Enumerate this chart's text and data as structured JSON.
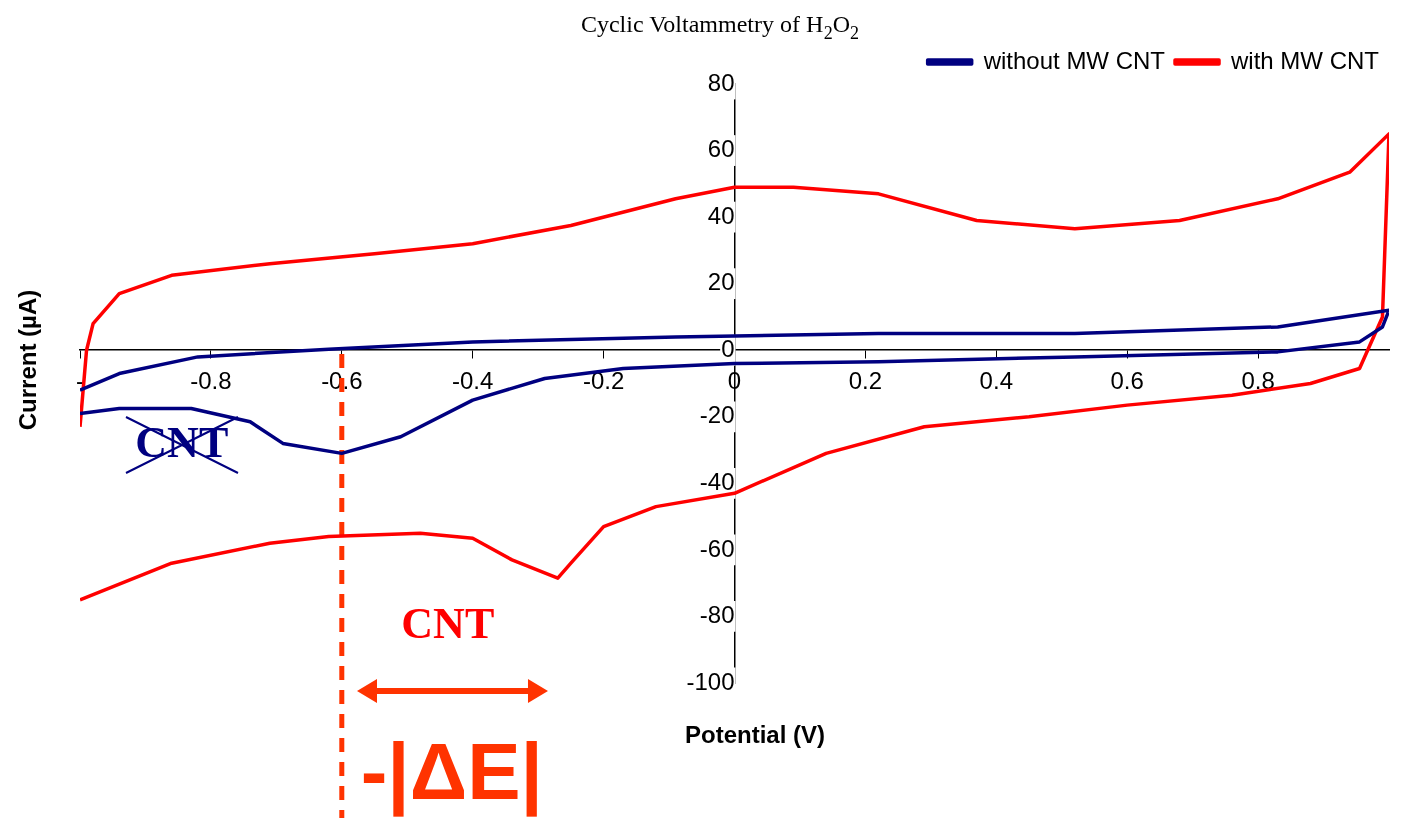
{
  "chart_data": {
    "type": "line",
    "title": "Cyclic Voltammetry of H$_{2}$O$_{2}$",
    "xlabel": "Potential (V)",
    "ylabel": "Current (µA)",
    "xlim": [
      -1,
      1
    ],
    "ylim": [
      -100,
      80
    ],
    "xticks": [
      {
        "value": -1,
        "label": "-"
      },
      -0.8,
      -0.6,
      -0.4,
      -0.2,
      0,
      0.2,
      0.4,
      0.6,
      0.8
    ],
    "yticks": [
      -100,
      -80,
      -60,
      -40,
      -20,
      0,
      20,
      40,
      60,
      80
    ],
    "grid": false,
    "legend": "top right",
    "line_style": "solid",
    "series": [
      {
        "name": "without MW CNT",
        "color": "#000080",
        "x": [
          -1,
          -0.94,
          -0.82,
          -0.62,
          -0.4,
          -0.09,
          0.22,
          0.52,
          0.83,
          1,
          0.99,
          0.955,
          0.83,
          0.52,
          0.22,
          0,
          -0.17,
          -0.29,
          -0.4,
          -0.51,
          -0.6,
          -0.69,
          -0.74,
          -0.83,
          -0.94,
          -1
        ],
        "values": [
          -12,
          -7,
          -2,
          0.3,
          2.5,
          4,
          5,
          5,
          7,
          12,
          7,
          2.5,
          -0.5,
          -2,
          -3.5,
          -4,
          -5.5,
          -8.5,
          -15,
          -26,
          -31,
          -28,
          -21.5,
          -17.5,
          -17.5,
          -19
        ]
      },
      {
        "name": "with MW CNT",
        "color": "#ff0000",
        "x": [
          -1,
          -0.99,
          -0.98,
          -0.94,
          -0.86,
          -0.71,
          -0.55,
          -0.4,
          -0.25,
          -0.09,
          0,
          0.09,
          0.22,
          0.37,
          0.52,
          0.68,
          0.83,
          0.94,
          1,
          0.99,
          0.955,
          0.88,
          0.76,
          0.6,
          0.45,
          0.29,
          0.14,
          0,
          -0.12,
          -0.2,
          -0.25,
          -0.27,
          -0.34,
          -0.4,
          -0.48,
          -0.62,
          -0.71,
          -0.86,
          -1
        ],
        "values": [
          -23,
          0,
          8,
          17,
          22.5,
          26,
          29,
          32,
          37.5,
          45.5,
          49,
          49,
          47,
          39,
          36.5,
          39,
          45.5,
          53.5,
          65,
          10,
          -5.5,
          -10,
          -13.5,
          -16.5,
          -20,
          -23,
          -31,
          -43,
          -47,
          -53,
          -64,
          -68.5,
          -63,
          -56.5,
          -55,
          -56,
          -58,
          -64,
          -75
        ]
      }
    ],
    "ref_lines": [
      {
        "axis": "x",
        "value": -0.6,
        "color": "#ff3300",
        "line_style": "dashed"
      }
    ],
    "annotations": [
      "CNT",
      "CNT",
      "-|ΔE|"
    ]
  }
}
